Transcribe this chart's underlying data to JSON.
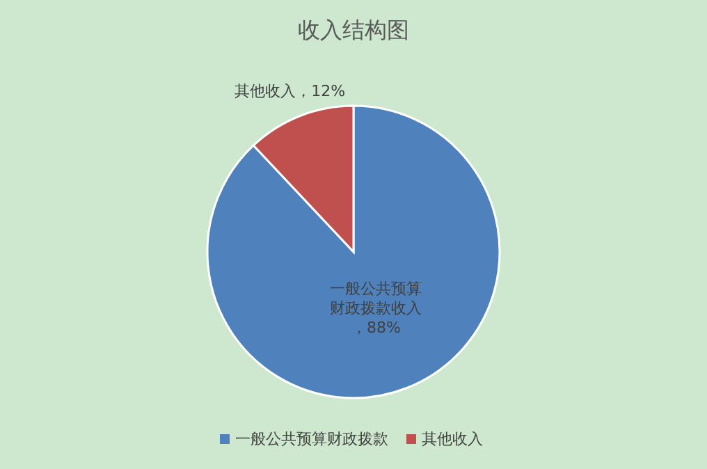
{
  "chart_data": {
    "type": "pie",
    "title": "收入结构图",
    "categories": [
      "一般公共预算财政拨款",
      "其他收入"
    ],
    "values": [
      88,
      12
    ],
    "colors": [
      "#4f81bd",
      "#c0504d"
    ],
    "value_labels": [
      "一般公共预算财政拨款收入，88%",
      "其他收入，12%"
    ],
    "legend": "bottom"
  }
}
